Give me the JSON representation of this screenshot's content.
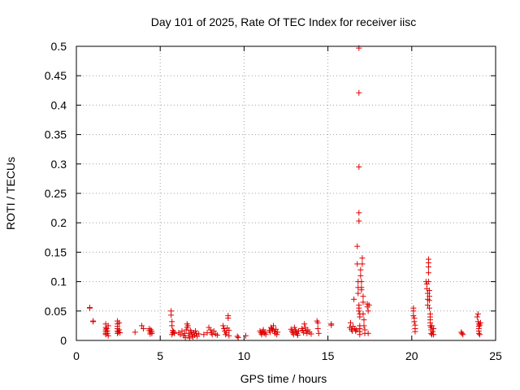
{
  "chart_data": {
    "type": "scatter",
    "title": "Day 101 of 2025, Rate Of TEC Index for receiver iisc",
    "xlabel": "GPS time / hours",
    "ylabel": "ROTI / TECUs",
    "xlim": [
      0,
      25
    ],
    "ylim": [
      0,
      0.5
    ],
    "xticks": [
      "0",
      "5",
      "10",
      "15",
      "20",
      "25"
    ],
    "yticks": [
      "0",
      "0.05",
      "0.1",
      "0.15",
      "0.2",
      "0.25",
      "0.3",
      "0.35",
      "0.4",
      "0.45",
      "0.5"
    ],
    "grid": true,
    "marker": "+",
    "color": "#e00000",
    "points": [
      [
        0.8,
        0.056
      ],
      [
        0.8,
        0.055
      ],
      [
        1.0,
        0.033
      ],
      [
        1.0,
        0.032
      ],
      [
        1.75,
        0.028
      ],
      [
        1.75,
        0.022
      ],
      [
        1.75,
        0.018
      ],
      [
        1.75,
        0.015
      ],
      [
        1.75,
        0.012
      ],
      [
        1.75,
        0.01
      ],
      [
        1.8,
        0.02
      ],
      [
        1.85,
        0.016
      ],
      [
        1.85,
        0.012
      ],
      [
        1.9,
        0.008
      ],
      [
        1.9,
        0.025
      ],
      [
        2.45,
        0.033
      ],
      [
        2.45,
        0.028
      ],
      [
        2.45,
        0.024
      ],
      [
        2.45,
        0.02
      ],
      [
        2.45,
        0.016
      ],
      [
        2.45,
        0.012
      ],
      [
        2.5,
        0.014
      ],
      [
        2.55,
        0.03
      ],
      [
        2.55,
        0.018
      ],
      [
        2.6,
        0.013
      ],
      [
        3.5,
        0.014
      ],
      [
        3.9,
        0.025
      ],
      [
        4.0,
        0.02
      ],
      [
        4.35,
        0.02
      ],
      [
        4.35,
        0.017
      ],
      [
        4.4,
        0.014
      ],
      [
        4.4,
        0.011
      ],
      [
        4.45,
        0.018
      ],
      [
        4.5,
        0.012
      ],
      [
        4.5,
        0.015
      ],
      [
        5.65,
        0.05
      ],
      [
        5.65,
        0.043
      ],
      [
        5.7,
        0.032
      ],
      [
        5.7,
        0.025
      ],
      [
        5.75,
        0.017
      ],
      [
        5.75,
        0.013
      ],
      [
        5.7,
        0.01
      ],
      [
        5.8,
        0.015
      ],
      [
        5.85,
        0.012
      ],
      [
        6.1,
        0.013
      ],
      [
        6.2,
        0.01
      ],
      [
        6.3,
        0.016
      ],
      [
        6.4,
        0.008
      ],
      [
        6.45,
        0.012
      ],
      [
        6.5,
        0.005
      ],
      [
        6.55,
        0.018
      ],
      [
        6.6,
        0.028
      ],
      [
        6.6,
        0.022
      ],
      [
        6.65,
        0.025
      ],
      [
        6.7,
        0.012
      ],
      [
        6.7,
        0.008
      ],
      [
        6.75,
        0.004
      ],
      [
        6.8,
        0.017
      ],
      [
        6.85,
        0.014
      ],
      [
        6.9,
        0.01
      ],
      [
        6.95,
        0.006
      ],
      [
        7.0,
        0.013
      ],
      [
        7.05,
        0.009
      ],
      [
        7.1,
        0.016
      ],
      [
        7.15,
        0.012
      ],
      [
        7.2,
        0.007
      ],
      [
        7.3,
        0.011
      ],
      [
        7.6,
        0.01
      ],
      [
        7.8,
        0.013
      ],
      [
        7.9,
        0.022
      ],
      [
        8.0,
        0.018
      ],
      [
        8.05,
        0.013
      ],
      [
        8.1,
        0.01
      ],
      [
        8.2,
        0.016
      ],
      [
        8.3,
        0.011
      ],
      [
        8.4,
        0.009
      ],
      [
        8.75,
        0.025
      ],
      [
        8.8,
        0.02
      ],
      [
        8.85,
        0.016
      ],
      [
        8.9,
        0.01
      ],
      [
        8.95,
        0.013
      ],
      [
        9.0,
        0.021
      ],
      [
        9.05,
        0.042
      ],
      [
        9.05,
        0.038
      ],
      [
        9.1,
        0.017
      ],
      [
        9.1,
        0.008
      ],
      [
        9.6,
        0.007
      ],
      [
        9.65,
        0.005
      ],
      [
        10.1,
        0.008
      ],
      [
        10.95,
        0.016
      ],
      [
        11.0,
        0.013
      ],
      [
        11.05,
        0.01
      ],
      [
        11.1,
        0.015
      ],
      [
        11.15,
        0.018
      ],
      [
        11.2,
        0.012
      ],
      [
        11.25,
        0.014
      ],
      [
        11.3,
        0.01
      ],
      [
        11.5,
        0.017
      ],
      [
        11.55,
        0.014
      ],
      [
        11.6,
        0.022
      ],
      [
        11.65,
        0.02
      ],
      [
        11.7,
        0.018
      ],
      [
        11.75,
        0.025
      ],
      [
        11.8,
        0.016
      ],
      [
        11.85,
        0.012
      ],
      [
        11.9,
        0.019
      ],
      [
        11.95,
        0.01
      ],
      [
        12.0,
        0.014
      ],
      [
        12.8,
        0.019
      ],
      [
        12.85,
        0.016
      ],
      [
        12.9,
        0.013
      ],
      [
        12.95,
        0.01
      ],
      [
        13.0,
        0.022
      ],
      [
        13.05,
        0.018
      ],
      [
        13.1,
        0.015
      ],
      [
        13.15,
        0.012
      ],
      [
        13.2,
        0.009
      ],
      [
        13.25,
        0.016
      ],
      [
        13.45,
        0.02
      ],
      [
        13.5,
        0.017
      ],
      [
        13.55,
        0.013
      ],
      [
        13.6,
        0.028
      ],
      [
        13.65,
        0.022
      ],
      [
        13.7,
        0.016
      ],
      [
        13.75,
        0.012
      ],
      [
        13.8,
        0.018
      ],
      [
        13.9,
        0.014
      ],
      [
        14.0,
        0.011
      ],
      [
        14.35,
        0.033
      ],
      [
        14.4,
        0.03
      ],
      [
        14.4,
        0.02
      ],
      [
        14.45,
        0.012
      ],
      [
        15.2,
        0.028
      ],
      [
        15.2,
        0.026
      ],
      [
        16.3,
        0.022
      ],
      [
        16.35,
        0.03
      ],
      [
        16.4,
        0.019
      ],
      [
        16.45,
        0.016
      ],
      [
        16.5,
        0.024
      ],
      [
        16.55,
        0.07
      ],
      [
        16.6,
        0.02
      ],
      [
        16.65,
        0.016
      ],
      [
        16.7,
        0.018
      ],
      [
        16.75,
        0.16
      ],
      [
        16.75,
        0.13
      ],
      [
        16.8,
        0.1
      ],
      [
        16.8,
        0.09
      ],
      [
        16.8,
        0.08
      ],
      [
        16.85,
        0.06
      ],
      [
        16.85,
        0.055
      ],
      [
        16.85,
        0.05
      ],
      [
        16.9,
        0.045
      ],
      [
        16.9,
        0.04
      ],
      [
        16.9,
        0.025
      ],
      [
        16.9,
        0.02
      ],
      [
        16.9,
        0.015
      ],
      [
        16.9,
        0.01
      ],
      [
        16.85,
        0.497
      ],
      [
        16.85,
        0.421
      ],
      [
        16.85,
        0.295
      ],
      [
        16.85,
        0.217
      ],
      [
        16.85,
        0.203
      ],
      [
        16.95,
        0.12
      ],
      [
        16.95,
        0.11
      ],
      [
        17.0,
        0.1
      ],
      [
        17.0,
        0.09
      ],
      [
        17.0,
        0.086
      ],
      [
        17.05,
        0.14
      ],
      [
        17.05,
        0.13
      ],
      [
        17.1,
        0.075
      ],
      [
        17.1,
        0.065
      ],
      [
        17.1,
        0.045
      ],
      [
        17.15,
        0.035
      ],
      [
        17.15,
        0.025
      ],
      [
        17.2,
        0.018
      ],
      [
        17.2,
        0.012
      ],
      [
        17.35,
        0.062
      ],
      [
        17.35,
        0.057
      ],
      [
        17.4,
        0.05
      ],
      [
        17.4,
        0.012
      ],
      [
        17.45,
        0.06
      ],
      [
        20.1,
        0.055
      ],
      [
        20.1,
        0.05
      ],
      [
        20.1,
        0.042
      ],
      [
        20.15,
        0.038
      ],
      [
        20.15,
        0.032
      ],
      [
        20.2,
        0.026
      ],
      [
        20.2,
        0.02
      ],
      [
        20.2,
        0.015
      ],
      [
        20.85,
        0.1
      ],
      [
        20.9,
        0.096
      ],
      [
        20.9,
        0.088
      ],
      [
        20.95,
        0.08
      ],
      [
        20.95,
        0.07
      ],
      [
        20.95,
        0.06
      ],
      [
        21.0,
        0.138
      ],
      [
        21.0,
        0.132
      ],
      [
        21.0,
        0.125
      ],
      [
        21.0,
        0.115
      ],
      [
        21.0,
        0.1
      ],
      [
        21.05,
        0.085
      ],
      [
        21.05,
        0.075
      ],
      [
        21.05,
        0.068
      ],
      [
        21.05,
        0.055
      ],
      [
        21.1,
        0.045
      ],
      [
        21.1,
        0.04
      ],
      [
        21.1,
        0.035
      ],
      [
        21.1,
        0.03
      ],
      [
        21.1,
        0.025
      ],
      [
        21.15,
        0.022
      ],
      [
        21.15,
        0.018
      ],
      [
        21.15,
        0.012
      ],
      [
        21.2,
        0.01
      ],
      [
        21.2,
        0.025
      ],
      [
        21.25,
        0.015
      ],
      [
        21.3,
        0.01
      ],
      [
        21.3,
        0.02
      ],
      [
        22.95,
        0.014
      ],
      [
        23.0,
        0.012
      ],
      [
        23.05,
        0.01
      ],
      [
        23.9,
        0.04
      ],
      [
        23.95,
        0.045
      ],
      [
        23.95,
        0.032
      ],
      [
        24.0,
        0.028
      ],
      [
        24.0,
        0.024
      ],
      [
        24.0,
        0.02
      ],
      [
        24.0,
        0.016
      ],
      [
        24.0,
        0.012
      ],
      [
        24.05,
        0.01
      ],
      [
        24.05,
        0.026
      ],
      [
        24.1,
        0.03
      ]
    ]
  }
}
